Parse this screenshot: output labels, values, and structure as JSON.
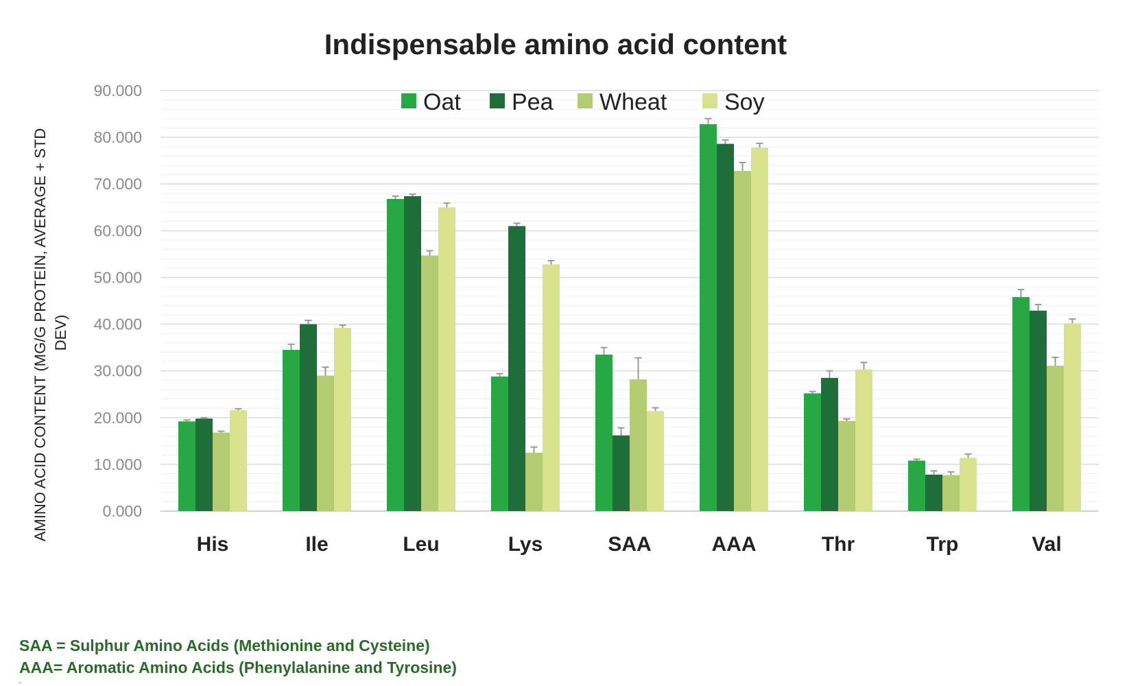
{
  "colors": {
    "Oat": "#27a844",
    "Pea": "#1f6e3a",
    "Wheat": "#b4cc74",
    "Soy": "#d8e18e",
    "note_color": "#2a6a2a",
    "error_bar": "#9a9a9a",
    "grid": "#e3e3e3"
  },
  "chart_data": {
    "type": "bar",
    "title": "Indispensable amino acid content",
    "ylabel_lines": [
      "AMINO ACID CONTENT (MG/G PROTEIN, AVERAGE + STD",
      "DEV)"
    ],
    "xlabel": "",
    "ylim": [
      0,
      90
    ],
    "yticks": [
      "0.000",
      "10.000",
      "20.000",
      "30.000",
      "40.000",
      "50.000",
      "60.000",
      "70.000",
      "80.000",
      "90.000"
    ],
    "grid": true,
    "legend_position": "top-center",
    "categories": [
      "His",
      "Ile",
      "Leu",
      "Lys",
      "SAA",
      "AAA",
      "Thr",
      "Trp",
      "Val"
    ],
    "series": [
      {
        "name": "Oat",
        "values": [
          19.2,
          34.5,
          66.8,
          28.8,
          33.5,
          82.8,
          25.2,
          10.8,
          45.8
        ],
        "errors": [
          0.3,
          1.2,
          0.6,
          0.6,
          1.5,
          1.2,
          0.4,
          0.3,
          1.6
        ]
      },
      {
        "name": "Pea",
        "values": [
          19.8,
          40.0,
          67.4,
          61.0,
          16.2,
          78.6,
          28.5,
          7.8,
          42.9
        ],
        "errors": [
          0.2,
          0.8,
          0.4,
          0.6,
          1.6,
          0.8,
          1.5,
          0.8,
          1.3
        ]
      },
      {
        "name": "Wheat",
        "values": [
          16.8,
          29.0,
          54.7,
          12.5,
          28.2,
          72.8,
          19.3,
          7.7,
          31.1
        ],
        "errors": [
          0.3,
          1.8,
          1.0,
          1.2,
          4.6,
          1.8,
          0.4,
          0.7,
          1.8
        ]
      },
      {
        "name": "Soy",
        "values": [
          21.6,
          39.2,
          65.0,
          52.8,
          21.4,
          77.8,
          30.3,
          11.4,
          40.2
        ],
        "errors": [
          0.3,
          0.6,
          0.9,
          0.8,
          0.7,
          0.9,
          1.5,
          0.8,
          0.9
        ]
      }
    ]
  },
  "notes": [
    "SAA = Sulphur Amino Acids (Methionine and Cysteine)",
    "AAA= Aromatic Amino Acids (Phenylalanine and Tyrosine)"
  ],
  "trailing_mark": "."
}
